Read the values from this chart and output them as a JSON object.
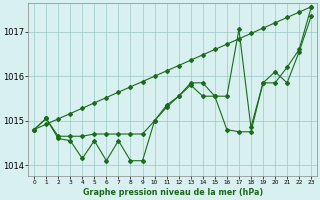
{
  "title": "",
  "xlabel": "Graphe pression niveau de la mer (hPa)",
  "x": [
    0,
    1,
    2,
    3,
    4,
    5,
    6,
    7,
    8,
    9,
    10,
    11,
    12,
    13,
    14,
    15,
    16,
    17,
    18,
    19,
    20,
    21,
    22,
    23
  ],
  "line_trend": [
    1014.8,
    1014.92,
    1015.04,
    1015.16,
    1015.28,
    1015.4,
    1015.52,
    1015.64,
    1015.76,
    1015.88,
    1016.0,
    1016.12,
    1016.24,
    1016.36,
    1016.48,
    1016.6,
    1016.72,
    1016.84,
    1016.96,
    1017.08,
    1017.2,
    1017.32,
    1017.44,
    1017.56
  ],
  "line_smooth": [
    1014.8,
    1015.05,
    1014.65,
    1014.65,
    1014.65,
    1014.7,
    1014.7,
    1014.7,
    1014.7,
    1014.7,
    1015.0,
    1015.3,
    1015.55,
    1015.8,
    1015.55,
    1015.55,
    1015.55,
    1017.05,
    1014.85,
    1015.85,
    1015.85,
    1016.2,
    1016.6,
    1017.55
  ],
  "line_jagged": [
    1014.8,
    1015.05,
    1014.6,
    1014.55,
    1014.15,
    1014.55,
    1014.1,
    1014.55,
    1014.1,
    1014.1,
    1015.0,
    1015.35,
    1015.55,
    1015.85,
    1015.85,
    1015.55,
    1014.8,
    1014.75,
    1014.75,
    1015.85,
    1016.1,
    1015.85,
    1016.55,
    1017.35
  ],
  "line_color": "#1a6b1a",
  "bg_color": "#d8f0f0",
  "grid_major_color": "#b0cece",
  "grid_minor_color": "#c8e4e4",
  "ylim": [
    1013.75,
    1017.65
  ],
  "yticks": [
    1014,
    1015,
    1016,
    1017
  ],
  "xticks": [
    0,
    1,
    2,
    3,
    4,
    5,
    6,
    7,
    8,
    9,
    10,
    11,
    12,
    13,
    14,
    15,
    16,
    17,
    18,
    19,
    20,
    21,
    22,
    23
  ],
  "marker": "D",
  "markersize": 2.0,
  "linewidth": 0.8
}
